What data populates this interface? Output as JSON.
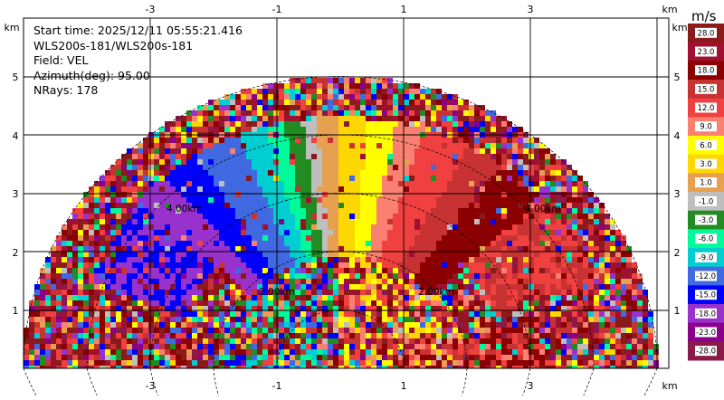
{
  "plot": {
    "info_lines": [
      "Start time: 2025/12/11 05:55:21.416",
      "WLS200s-181/WLS200s-181",
      "Field: VEL",
      "Azimuth(deg): 95.00",
      "NRays: 178"
    ],
    "x_ticks": [
      "-3",
      "-1",
      "1",
      "3"
    ],
    "y_ticks": [
      "1",
      "2",
      "3",
      "4",
      "5"
    ],
    "unit_labels": {
      "top_left": "km",
      "top_right_a": "km",
      "top_right_b": "km",
      "bottom_right": "km"
    },
    "range_rings": [
      "1.00km",
      "2.00km",
      "3.00km",
      "4.00km"
    ],
    "colorbar": {
      "title": "m/s",
      "levels": [
        {
          "label": "28.0",
          "color": "#8b1a1a"
        },
        {
          "label": "23.0",
          "color": "#a01030"
        },
        {
          "label": "18.0",
          "color": "#8b0000"
        },
        {
          "label": "15.0",
          "color": "#c83232"
        },
        {
          "label": "12.0",
          "color": "#f04040"
        },
        {
          "label": "9.0",
          "color": "#fa8072"
        },
        {
          "label": "6.0",
          "color": "#ffff00"
        },
        {
          "label": "3.0",
          "color": "#ffd700"
        },
        {
          "label": "1.0",
          "color": "#e6a050"
        },
        {
          "label": "-1.0",
          "color": "#bebebe"
        },
        {
          "label": "-3.0",
          "color": "#228b22"
        },
        {
          "label": "-6.0",
          "color": "#00fa9a"
        },
        {
          "label": "-9.0",
          "color": "#00ced1"
        },
        {
          "label": "-12.0",
          "color": "#4169e1"
        },
        {
          "label": "-15.0",
          "color": "#0000ff"
        },
        {
          "label": "-18.0",
          "color": "#9932cc"
        },
        {
          "label": "-23.0",
          "color": "#8b008b"
        },
        {
          "label": "-28.0",
          "color": "#8b1a4a"
        }
      ]
    }
  }
}
